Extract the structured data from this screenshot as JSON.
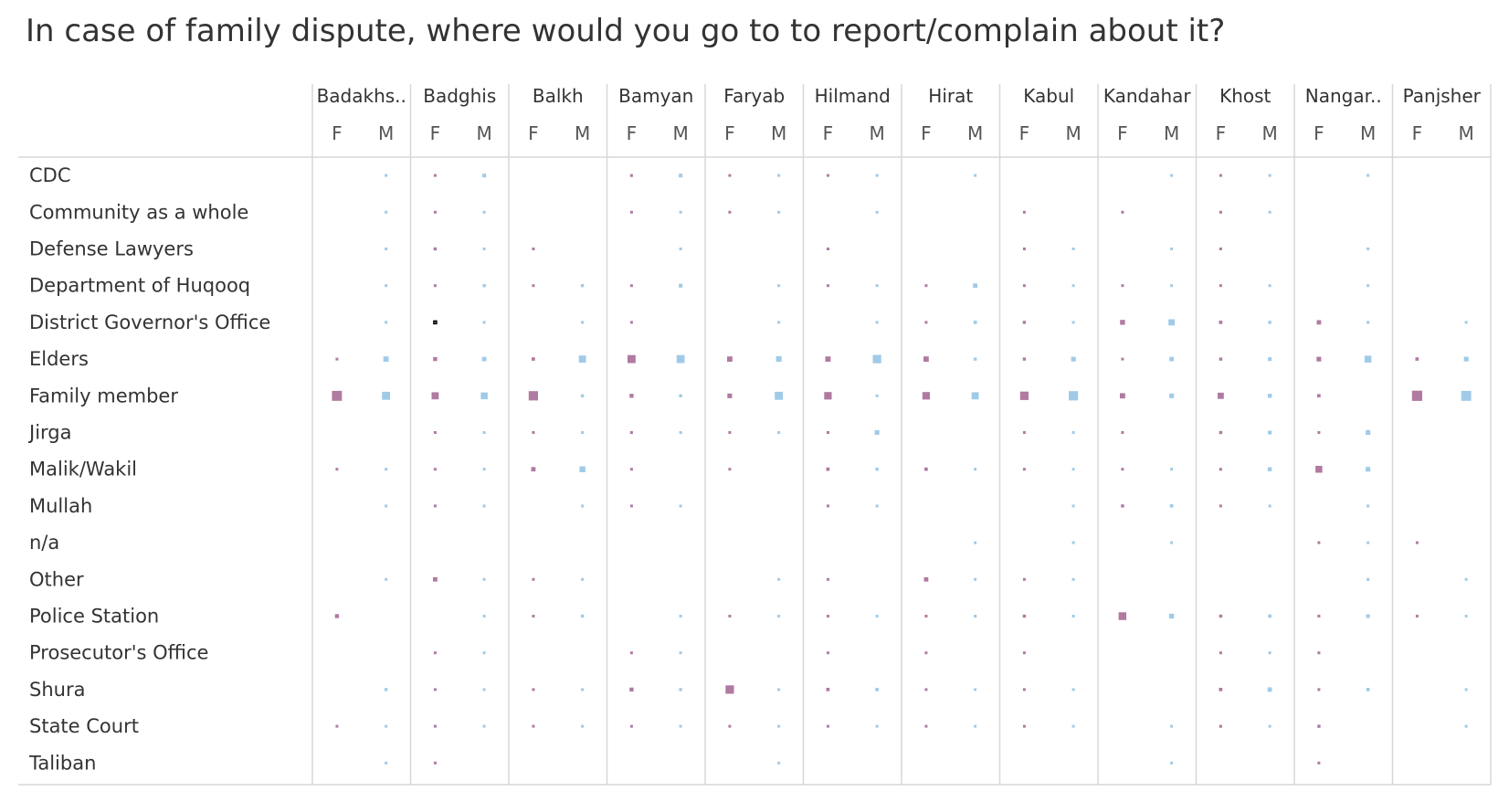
{
  "chart_data": {
    "type": "heatmap",
    "title": "In case of family dispute, where would you go to to report/complain about it?",
    "mark": "square (area encodes value)",
    "provinces": [
      "Badakhs..",
      "Badghis",
      "Balkh",
      "Bamyan",
      "Faryab",
      "Hilmand",
      "Hirat",
      "Kabul",
      "Kandahar",
      "Khost",
      "Nangar..",
      "Panjsher"
    ],
    "genders": [
      "F",
      "M"
    ],
    "categories": [
      "CDC",
      "Community as a whole",
      "Defense Lawyers",
      "Department of Huqooq",
      "District Governor's Office",
      "Elders",
      "Family member",
      "Jirga",
      "Malik/Wakil",
      "Mullah",
      "n/a",
      "Other",
      "Police Station",
      "Prosecutor's Office",
      "Shura",
      "State Court",
      "Taliban"
    ],
    "colors": {
      "F": "#b07aa1",
      "M": "#a0cbe8",
      "highlight_border": "#000000",
      "grid": "#d7d7d7"
    },
    "value_scale": "relative square size, 0 = absent, 1 = largest",
    "highlighted_cell": {
      "category": "District Governor's Office",
      "province": "Badghis",
      "gender": "F"
    },
    "values": {
      "CDC": [
        [
          0,
          0.06
        ],
        [
          0.06,
          0.12
        ],
        [
          0,
          0
        ],
        [
          0.09,
          0.12
        ],
        [
          0.05,
          0.08
        ],
        [
          0.05,
          0.08
        ],
        [
          0,
          0.08
        ],
        [
          0,
          0
        ],
        [
          0,
          0.04
        ],
        [
          0.06,
          0.08
        ],
        [
          0,
          0.04
        ],
        [
          0,
          0
        ]
      ],
      "Community as a whole": [
        [
          0,
          0.08
        ],
        [
          0.06,
          0.06
        ],
        [
          0,
          0
        ],
        [
          0.08,
          0.06
        ],
        [
          0.04,
          0.04
        ],
        [
          0,
          0.04
        ],
        [
          0,
          0
        ],
        [
          0.04,
          0
        ],
        [
          0.04,
          0
        ],
        [
          0.04,
          0.08
        ],
        [
          0,
          0
        ],
        [
          0,
          0
        ]
      ],
      "Defense Lawyers": [
        [
          0,
          0.04
        ],
        [
          0.1,
          0.06
        ],
        [
          0.04,
          0
        ],
        [
          0,
          0.04
        ],
        [
          0,
          0
        ],
        [
          0.05,
          0
        ],
        [
          0,
          0
        ],
        [
          0.04,
          0.04
        ],
        [
          0,
          0.04
        ],
        [
          0.04,
          0
        ],
        [
          0,
          0.04
        ],
        [
          0,
          0
        ]
      ],
      "Department of Huqooq": [
        [
          0,
          0.07
        ],
        [
          0.07,
          0.1
        ],
        [
          0.05,
          0.1
        ],
        [
          0.08,
          0.12
        ],
        [
          0,
          0.08
        ],
        [
          0.04,
          0.04
        ],
        [
          0.04,
          0.14
        ],
        [
          0.08,
          0.04
        ],
        [
          0.06,
          0.04
        ],
        [
          0.06,
          0.08
        ],
        [
          0,
          0.06
        ],
        [
          0,
          0
        ]
      ],
      "District Governor's Office": [
        [
          0,
          0.08
        ],
        [
          0.06,
          0.08
        ],
        [
          0,
          0.07
        ],
        [
          0.04,
          0
        ],
        [
          0,
          0.04
        ],
        [
          0,
          0.04
        ],
        [
          0.07,
          0.11
        ],
        [
          0.1,
          0.08
        ],
        [
          0.16,
          0.2
        ],
        [
          0.11,
          0.1
        ],
        [
          0.14,
          0.09
        ],
        [
          0,
          0.04
        ]
      ],
      "Elders": [
        [
          0.07,
          0.17
        ],
        [
          0.13,
          0.14
        ],
        [
          0.11,
          0.23
        ],
        [
          0.26,
          0.26
        ],
        [
          0.17,
          0.18
        ],
        [
          0.17,
          0.27
        ],
        [
          0.17,
          0.1
        ],
        [
          0.1,
          0.15
        ],
        [
          0.05,
          0.14
        ],
        [
          0.1,
          0.12
        ],
        [
          0.15,
          0.22
        ],
        [
          0.11,
          0.15
        ]
      ],
      "Family member": [
        [
          0.32,
          0.26
        ],
        [
          0.23,
          0.22
        ],
        [
          0.3,
          0.1
        ],
        [
          0.13,
          0.1
        ],
        [
          0.15,
          0.26
        ],
        [
          0.24,
          0.08
        ],
        [
          0.24,
          0.23
        ],
        [
          0.27,
          0.3
        ],
        [
          0.17,
          0.15
        ],
        [
          0.2,
          0.13
        ],
        [
          0.11,
          0
        ],
        [
          0.33,
          0.32
        ]
      ],
      "Jirga": [
        [
          0,
          0
        ],
        [
          0.07,
          0.06
        ],
        [
          0.04,
          0.03
        ],
        [
          0.09,
          0.09
        ],
        [
          0.06,
          0.03
        ],
        [
          0.08,
          0.15
        ],
        [
          0,
          0
        ],
        [
          0.07,
          0.03
        ],
        [
          0.04,
          0
        ],
        [
          0.1,
          0.12
        ],
        [
          0.05,
          0.15
        ],
        [
          0,
          0
        ]
      ],
      "Malik/Wakil": [
        [
          0.03,
          0.03
        ],
        [
          0.07,
          0.05
        ],
        [
          0.14,
          0.19
        ],
        [
          0.03,
          0
        ],
        [
          0.06,
          0
        ],
        [
          0.11,
          0.1
        ],
        [
          0.11,
          0.08
        ],
        [
          0.08,
          0.07
        ],
        [
          0.03,
          0.03
        ],
        [
          0.09,
          0.13
        ],
        [
          0.22,
          0.15
        ],
        [
          0,
          0
        ]
      ],
      "Mullah": [
        [
          0,
          0.03
        ],
        [
          0.04,
          0.05
        ],
        [
          0,
          0.03
        ],
        [
          0.06,
          0.03
        ],
        [
          0,
          0
        ],
        [
          0.08,
          0.04
        ],
        [
          0,
          0
        ],
        [
          0,
          0.04
        ],
        [
          0.1,
          0.11
        ],
        [
          0.06,
          0.03
        ],
        [
          0,
          0.03
        ],
        [
          0,
          0
        ]
      ],
      "n/a": [
        [
          0,
          0
        ],
        [
          0,
          0
        ],
        [
          0,
          0
        ],
        [
          0,
          0
        ],
        [
          0,
          0
        ],
        [
          0,
          0
        ],
        [
          0,
          0.03
        ],
        [
          0,
          0.03
        ],
        [
          0,
          0.03
        ],
        [
          0,
          0
        ],
        [
          0.03,
          0.03
        ],
        [
          0.04,
          0
        ]
      ],
      "Other": [
        [
          0,
          0.04
        ],
        [
          0.14,
          0.08
        ],
        [
          0.03,
          0.03
        ],
        [
          0,
          0
        ],
        [
          0,
          0.03
        ],
        [
          0.04,
          0
        ],
        [
          0.14,
          0.07
        ],
        [
          0.03,
          0.03
        ],
        [
          0,
          0
        ],
        [
          0,
          0
        ],
        [
          0,
          0.09
        ],
        [
          0,
          0.06
        ]
      ],
      "Police Station": [
        [
          0.13,
          0
        ],
        [
          0,
          0.08
        ],
        [
          0.03,
          0.1
        ],
        [
          0,
          0.05
        ],
        [
          0.03,
          0.04
        ],
        [
          0.04,
          0.07
        ],
        [
          0.04,
          0.09
        ],
        [
          0.1,
          0.07
        ],
        [
          0.25,
          0.16
        ],
        [
          0.1,
          0.11
        ],
        [
          0.08,
          0.12
        ],
        [
          0.05,
          0.06
        ]
      ],
      "Prosecutor's Office": [
        [
          0,
          0
        ],
        [
          0.04,
          0.05
        ],
        [
          0,
          0
        ],
        [
          0.06,
          0.06
        ],
        [
          0,
          0
        ],
        [
          0.04,
          0
        ],
        [
          0.04,
          0
        ],
        [
          0.06,
          0
        ],
        [
          0,
          0
        ],
        [
          0.04,
          0.06
        ],
        [
          0.03,
          0
        ],
        [
          0,
          0
        ]
      ],
      "Shura": [
        [
          0,
          0.1
        ],
        [
          0.06,
          0.03
        ],
        [
          0.06,
          0.09
        ],
        [
          0.13,
          0.1
        ],
        [
          0.27,
          0.08
        ],
        [
          0.11,
          0.11
        ],
        [
          0.05,
          0.05
        ],
        [
          0.04,
          0.08
        ],
        [
          0,
          0
        ],
        [
          0.11,
          0.14
        ],
        [
          0.06,
          0.11
        ],
        [
          0,
          0.07
        ]
      ],
      "State Court": [
        [
          0.03,
          0.07
        ],
        [
          0.04,
          0.04
        ],
        [
          0.03,
          0.03
        ],
        [
          0.06,
          0.03
        ],
        [
          0.03,
          0.05
        ],
        [
          0.07,
          0.03
        ],
        [
          0.08,
          0.08
        ],
        [
          0.04,
          0.04
        ],
        [
          0,
          0.03
        ],
        [
          0.09,
          0.08
        ],
        [
          0.1,
          0
        ],
        [
          0,
          0.03
        ]
      ],
      "Taliban": [
        [
          0,
          0.05
        ],
        [
          0.04,
          0
        ],
        [
          0,
          0
        ],
        [
          0,
          0
        ],
        [
          0,
          0.03
        ],
        [
          0,
          0
        ],
        [
          0,
          0
        ],
        [
          0,
          0
        ],
        [
          0,
          0.03
        ],
        [
          0,
          0
        ],
        [
          0.03,
          0
        ],
        [
          0,
          0
        ]
      ]
    }
  }
}
